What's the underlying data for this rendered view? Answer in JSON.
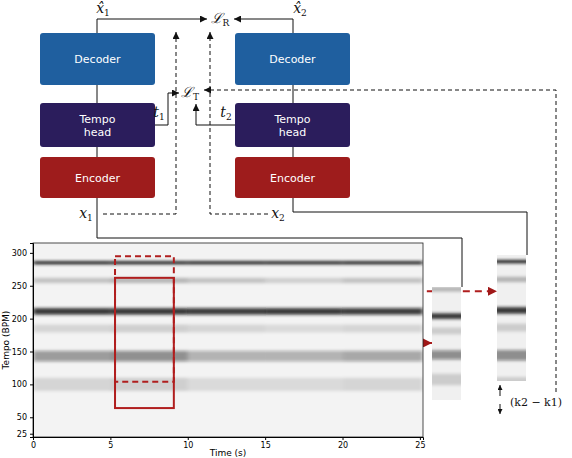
{
  "diagram": {
    "columns": [
      [
        {
          "label": [
            "Decoder"
          ],
          "color": "#1f5f9f"
        },
        {
          "label": [
            "Tempo",
            "head"
          ],
          "color": "#2b1d5c"
        },
        {
          "label": [
            "Encoder"
          ],
          "color": "#9e1c1c"
        }
      ],
      [
        {
          "label": [
            "Decoder"
          ],
          "color": "#1f5f9f"
        },
        {
          "label": [
            "Tempo",
            "head"
          ],
          "color": "#2b1d5c"
        },
        {
          "label": [
            "Encoder"
          ],
          "color": "#9e1c1c"
        }
      ]
    ],
    "symbols": [
      {
        "base": "x̂",
        "sub": "1"
      },
      {
        "base": "x̂",
        "sub": "2"
      },
      {
        "base": "ℒ",
        "sub": "R"
      },
      {
        "base": "ℒ",
        "sub": "T"
      },
      {
        "base": "t",
        "sub": "1"
      },
      {
        "base": "t",
        "sub": "2"
      },
      {
        "base": "x",
        "sub": "1"
      },
      {
        "base": "x",
        "sub": "2"
      }
    ],
    "annotation": "(k2 − k1)"
  },
  "chart_data": {
    "type": "heatmap",
    "xlabel": "Time (s)",
    "ylabel": "Tempo (BPM)",
    "xlim": [
      0,
      25.2
    ],
    "ylim": [
      20,
      315
    ],
    "xticks": [
      0,
      5,
      10,
      15,
      20,
      25
    ],
    "yticks": [
      25,
      50,
      100,
      150,
      200,
      250,
      300
    ],
    "segments": [
      0,
      5,
      10,
      15,
      20,
      25.2
    ],
    "bands": [
      {
        "tempo": 285,
        "width": 5,
        "intensity": [
          0.95,
          0.95,
          0.95,
          0.95,
          0.95
        ]
      },
      {
        "tempo": 258,
        "width": 8,
        "intensity": [
          0.2,
          0.25,
          0.2,
          0.15,
          0.2
        ]
      },
      {
        "tempo": 211,
        "width": 10,
        "intensity": [
          0.85,
          0.85,
          0.8,
          0.85,
          0.8
        ]
      },
      {
        "tempo": 185,
        "width": 12,
        "intensity": [
          0.12,
          0.15,
          0.12,
          0.1,
          0.12
        ]
      },
      {
        "tempo": 143,
        "width": 16,
        "intensity": [
          0.4,
          0.45,
          0.3,
          0.3,
          0.35
        ]
      },
      {
        "tempo": 100,
        "width": 20,
        "intensity": [
          0.12,
          0.15,
          0.1,
          0.1,
          0.12
        ]
      }
    ],
    "crops": [
      {
        "t0": 5.3,
        "t1": 9.1,
        "bpm0": 64,
        "bpm1": 262,
        "color": "#b01e1e",
        "line_style": "solid"
      },
      {
        "t0": 5.3,
        "t1": 9.1,
        "bpm0": 104,
        "bpm1": 295,
        "color": "#b01e1e",
        "line_style": "dashed"
      }
    ]
  }
}
